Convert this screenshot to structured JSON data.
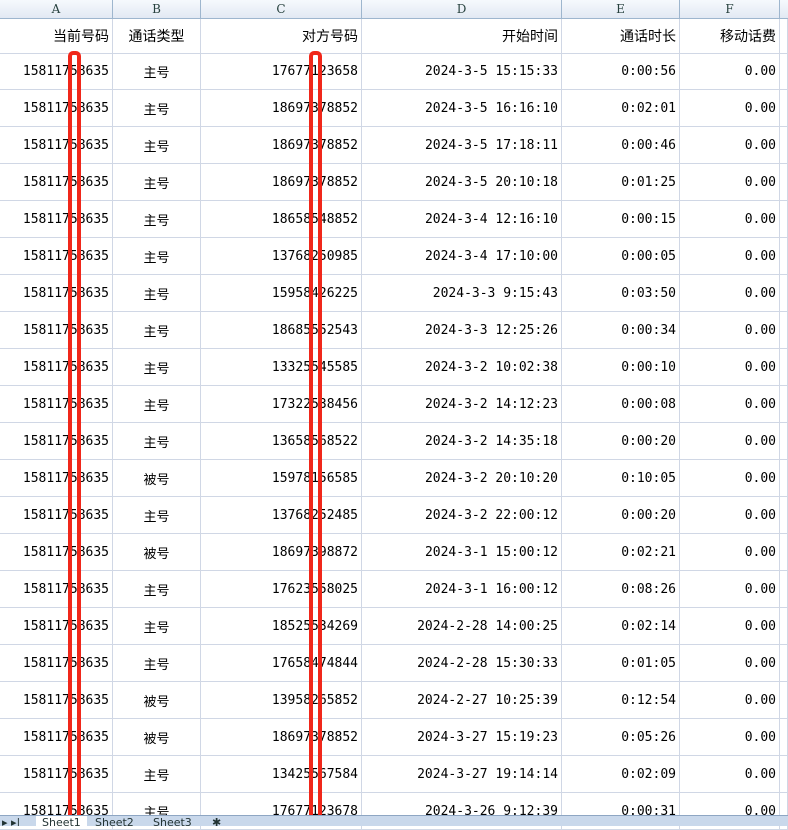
{
  "columns": [
    "A",
    "B",
    "C",
    "D",
    "E",
    "F"
  ],
  "headers": [
    "当前号码",
    "通话类型",
    "对方号码",
    "开始时间",
    "通话时长",
    "移动话费"
  ],
  "rows": [
    [
      "15811758635",
      "主号",
      "17677123658",
      "2024-3-5 15:15:33",
      "0:00:56",
      "0.00"
    ],
    [
      "15811758635",
      "主号",
      "18697378852",
      "2024-3-5 16:16:10",
      "0:02:01",
      "0.00"
    ],
    [
      "15811758635",
      "主号",
      "18697378852",
      "2024-3-5 17:18:11",
      "0:00:46",
      "0.00"
    ],
    [
      "15811758635",
      "主号",
      "18697378852",
      "2024-3-5 20:10:18",
      "0:01:25",
      "0.00"
    ],
    [
      "15811758635",
      "主号",
      "18658548852",
      "2024-3-4 12:16:10",
      "0:00:15",
      "0.00"
    ],
    [
      "15811758635",
      "主号",
      "13768250985",
      "2024-3-4 17:10:00",
      "0:00:05",
      "0.00"
    ],
    [
      "15811758635",
      "主号",
      "15958426225",
      "2024-3-3 9:15:43",
      "0:03:50",
      "0.00"
    ],
    [
      "15811758635",
      "主号",
      "18685552543",
      "2024-3-3 12:25:26",
      "0:00:34",
      "0.00"
    ],
    [
      "15811758635",
      "主号",
      "13325545585",
      "2024-3-2 10:02:38",
      "0:00:10",
      "0.00"
    ],
    [
      "15811758635",
      "主号",
      "17322538456",
      "2024-3-2 14:12:23",
      "0:00:08",
      "0.00"
    ],
    [
      "15811758635",
      "主号",
      "13658568522",
      "2024-3-2 14:35:18",
      "0:00:20",
      "0.00"
    ],
    [
      "15811758635",
      "被号",
      "15978156585",
      "2024-3-2 20:10:20",
      "0:10:05",
      "0.00"
    ],
    [
      "15811758635",
      "主号",
      "13768252485",
      "2024-3-2 22:00:12",
      "0:00:20",
      "0.00"
    ],
    [
      "15811758635",
      "被号",
      "18697398872",
      "2024-3-1 15:00:12",
      "0:02:21",
      "0.00"
    ],
    [
      "15811758635",
      "主号",
      "17623558025",
      "2024-3-1 16:00:12",
      "0:08:26",
      "0.00"
    ],
    [
      "15811758635",
      "主号",
      "18525534269",
      "2024-2-28 14:00:25",
      "0:02:14",
      "0.00"
    ],
    [
      "15811758635",
      "主号",
      "17658474844",
      "2024-2-28 15:30:33",
      "0:01:05",
      "0.00"
    ],
    [
      "15811758635",
      "被号",
      "13958265852",
      "2024-2-27 10:25:39",
      "0:12:54",
      "0.00"
    ],
    [
      "15811758635",
      "被号",
      "18697378852",
      "2024-3-27 15:19:23",
      "0:05:26",
      "0.00"
    ],
    [
      "15811758635",
      "主号",
      "13425567584",
      "2024-3-27 19:14:14",
      "0:02:09",
      "0.00"
    ],
    [
      "15811758635",
      "主号",
      "17677123678",
      "2024-3-26 9:12:39",
      "0:00:31",
      "0.00"
    ]
  ],
  "sheet_tabs": [
    "Sheet1",
    "Sheet2",
    "Sheet3"
  ],
  "redaction_color": "#f0271a"
}
